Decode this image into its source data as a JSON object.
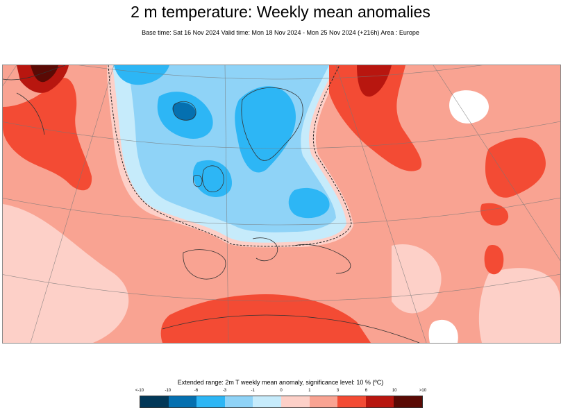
{
  "title": "2 m temperature: Weekly mean anomalies",
  "subtitle": "Base time: Sat 16 Nov 2024 Valid time: Mon 18 Nov 2024 - Mon 25 Nov 2024 (+216h) Area : Europe",
  "legend": {
    "title": "Extended range: 2m T weekly mean anomaly, significance level: 10 % (ºC)",
    "ticks": [
      "<-10",
      "-10",
      "-6",
      "-3",
      "-1",
      "0",
      "1",
      "3",
      "6",
      "10",
      ">10"
    ],
    "colors": [
      "#023858",
      "#0570b0",
      "#2db6f5",
      "#8fd3f7",
      "#c6ebfb",
      "#ffffff",
      "#fdd0c8",
      "#f9a392",
      "#f34b34",
      "#b8160f",
      "#5a0a05"
    ]
  },
  "map": {
    "region": "Europe",
    "colors": {
      "warm": "#f9a392",
      "light_warm": "#fdd0c8",
      "strong_warm": "#f34b34",
      "very_strong_warm": "#b8160f",
      "extreme_warm": "#5a0a05",
      "neutral": "#ffffff",
      "light_cool": "#c6ebfb",
      "cool": "#8fd3f7",
      "strong_cool": "#2db6f5",
      "very_strong_cool": "#0570b0"
    }
  }
}
